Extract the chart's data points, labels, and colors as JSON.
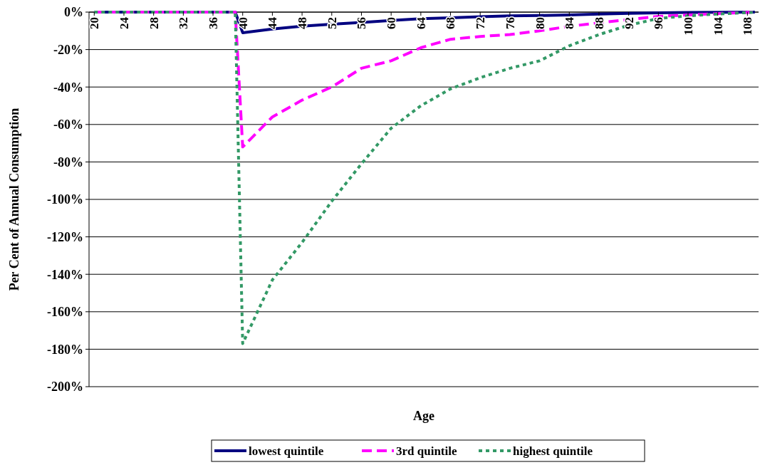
{
  "chart_data": {
    "type": "line",
    "xlabel": "Age",
    "ylabel": "Per Cent of Annual Consumption",
    "xlim": [
      19.3,
      109.5
    ],
    "xticks": [
      20,
      24,
      28,
      32,
      36,
      40,
      44,
      48,
      52,
      56,
      60,
      64,
      68,
      72,
      76,
      80,
      84,
      88,
      92,
      96,
      100,
      104,
      108
    ],
    "ylim": [
      -200,
      0
    ],
    "yticks": [
      {
        "value": 0,
        "label": "0%"
      },
      {
        "value": -20,
        "label": "-20%"
      },
      {
        "value": -40,
        "label": "-40%"
      },
      {
        "value": -60,
        "label": "-60%"
      },
      {
        "value": -80,
        "label": "-80%"
      },
      {
        "value": -100,
        "label": "-100%"
      },
      {
        "value": -120,
        "label": "-120%"
      },
      {
        "value": -140,
        "label": "-140%"
      },
      {
        "value": -160,
        "label": "-160%"
      },
      {
        "value": -180,
        "label": "-180%"
      },
      {
        "value": -200,
        "label": "-200%"
      }
    ],
    "grid": "y",
    "legend": "bottom",
    "x": [
      20,
      39,
      40,
      44,
      48,
      52,
      56,
      60,
      64,
      68,
      72,
      76,
      80,
      84,
      88,
      92,
      96,
      100,
      104,
      109
    ],
    "series": [
      {
        "name": "lowest quintile",
        "color": "#000080",
        "line_style": "solid",
        "values": [
          0,
          0,
          -11,
          -9,
          -7.5,
          -6.5,
          -5.5,
          -4.5,
          -3.5,
          -3,
          -2.5,
          -2,
          -1.8,
          -1.5,
          -1,
          -0.7,
          -0.4,
          -0.2,
          -0.1,
          0
        ]
      },
      {
        "name": "3rd quintile",
        "color": "#ff00ff",
        "line_style": "dashed",
        "values": [
          0,
          0,
          -72,
          -56,
          -47,
          -40,
          -30,
          -26,
          -19,
          -14.5,
          -13,
          -12,
          -10,
          -7.6,
          -5.7,
          -4,
          -2.3,
          -1.5,
          -0.8,
          0
        ]
      },
      {
        "name": "highest quintile",
        "color": "#339966",
        "line_style": "dotted",
        "values": [
          0,
          0,
          -177,
          -143,
          -123,
          -101,
          -81,
          -62,
          -50,
          -41,
          -35,
          -30,
          -26,
          -18,
          -12,
          -7,
          -3.4,
          -2,
          -1,
          0
        ]
      }
    ]
  }
}
